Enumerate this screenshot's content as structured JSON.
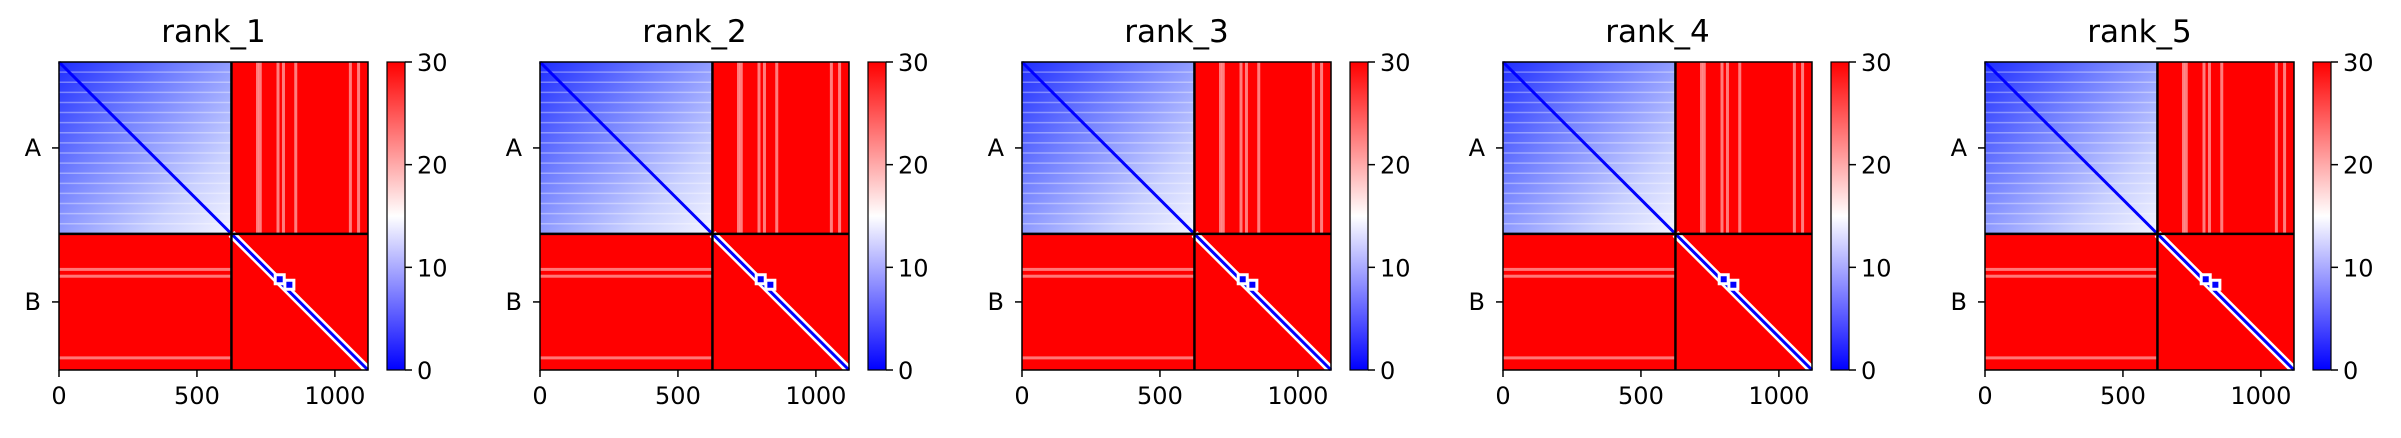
{
  "figure": {
    "colormap": "bwr",
    "colors": {
      "low": "#0000ff",
      "mid": "#ffffff",
      "high": "#ff0000",
      "divider": "#000000"
    }
  },
  "chart_data": [
    {
      "type": "heatmap",
      "title": "rank_1",
      "xlabel": "",
      "ylabel": "",
      "x_ticks": [
        0,
        500,
        1000
      ],
      "xlim": [
        0,
        1120
      ],
      "y_tick_labels": [
        "A",
        "B"
      ],
      "chain_boundary": 625,
      "colorbar": {
        "range": [
          0,
          30
        ],
        "ticks": [
          0,
          10,
          20,
          30
        ]
      }
    },
    {
      "type": "heatmap",
      "title": "rank_2",
      "xlabel": "",
      "ylabel": "",
      "x_ticks": [
        0,
        500,
        1000
      ],
      "xlim": [
        0,
        1120
      ],
      "y_tick_labels": [
        "A",
        "B"
      ],
      "chain_boundary": 625,
      "colorbar": {
        "range": [
          0,
          30
        ],
        "ticks": [
          0,
          10,
          20,
          30
        ]
      }
    },
    {
      "type": "heatmap",
      "title": "rank_3",
      "xlabel": "",
      "ylabel": "",
      "x_ticks": [
        0,
        500,
        1000
      ],
      "xlim": [
        0,
        1120
      ],
      "y_tick_labels": [
        "A",
        "B"
      ],
      "chain_boundary": 625,
      "colorbar": {
        "range": [
          0,
          30
        ],
        "ticks": [
          0,
          10,
          20,
          30
        ]
      }
    },
    {
      "type": "heatmap",
      "title": "rank_4",
      "xlabel": "",
      "ylabel": "",
      "x_ticks": [
        0,
        500,
        1000
      ],
      "xlim": [
        0,
        1120
      ],
      "y_tick_labels": [
        "A",
        "B"
      ],
      "chain_boundary": 625,
      "colorbar": {
        "range": [
          0,
          30
        ],
        "ticks": [
          0,
          10,
          20,
          30
        ]
      }
    },
    {
      "type": "heatmap",
      "title": "rank_5",
      "xlabel": "",
      "ylabel": "",
      "x_ticks": [
        0,
        500,
        1000
      ],
      "xlim": [
        0,
        1120
      ],
      "y_tick_labels": [
        "A",
        "B"
      ],
      "chain_boundary": 625,
      "colorbar": {
        "range": [
          0,
          30
        ],
        "ticks": [
          0,
          10,
          20,
          30
        ]
      }
    }
  ]
}
